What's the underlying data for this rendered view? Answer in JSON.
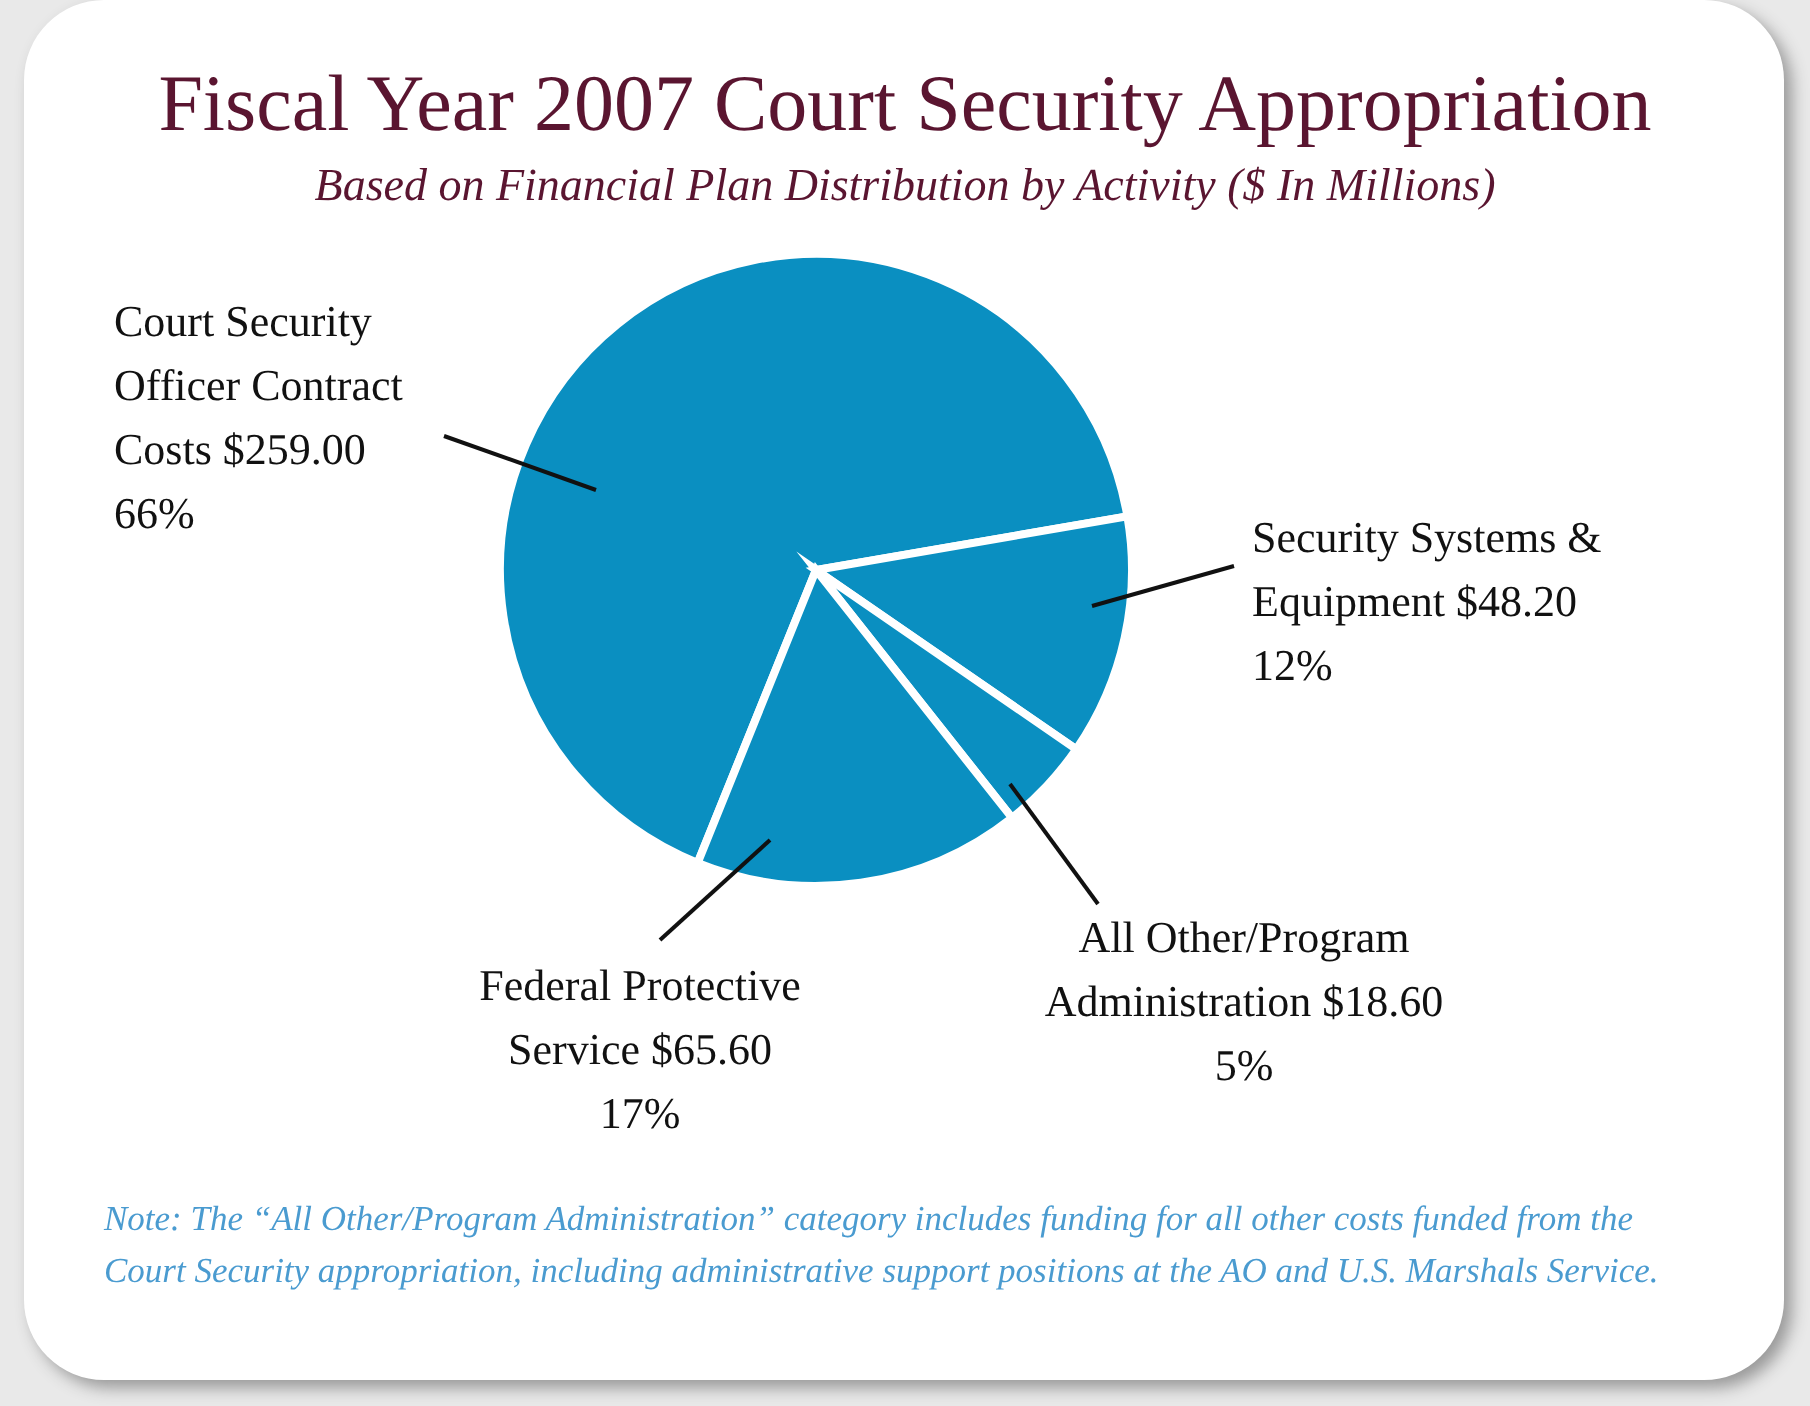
{
  "chart_data": {
    "type": "pie",
    "title": "Fiscal Year 2007 Court Security Appropriation",
    "subtitle": "Based on Financial Plan Distribution by Activity ($ In Millions)",
    "categories": [
      "Court Security Officer Contract Costs",
      "Security Systems & Equipment",
      "All Other/Program Administration",
      "Federal Protective Service"
    ],
    "values": [
      259.0,
      48.2,
      18.6,
      65.6
    ],
    "colors": [
      "#0a8fc1",
      "#0a8fc1",
      "#0a8fc1",
      "#0a8fc1"
    ],
    "value_labels": [
      "$259.00\n66%",
      "$48.20\n12%",
      "$18.60\n5%",
      "$65.60\n17%"
    ],
    "legend": false,
    "annotations": [
      "Note:  The “All Other/Program Administration” category includes funding for all other costs funded from the Court Security appropriation, including administrative support positions at the AO and U.S. Marshals Service."
    ]
  }
}
